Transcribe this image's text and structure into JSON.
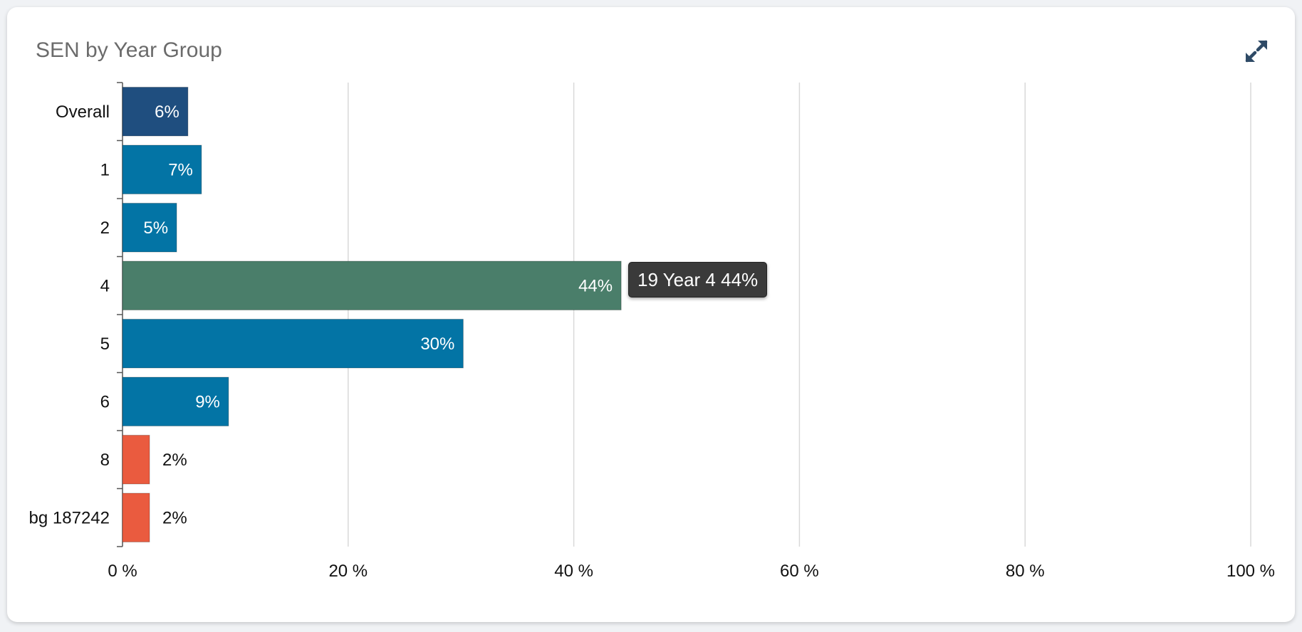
{
  "card": {
    "title": "SEN by Year Group",
    "expand_icon": "expand-arrows-icon"
  },
  "tooltip": {
    "text": "19 Year 4 44%"
  },
  "colors": {
    "overall": "#1f4e7f",
    "year": "#0374a5",
    "highlight": "#4a7e6a",
    "other": "#ea5b3f",
    "icon": "#2e4a66"
  },
  "chart_data": {
    "type": "bar",
    "orientation": "horizontal",
    "title": "SEN by Year Group",
    "xlabel": "",
    "ylabel": "",
    "xlim": [
      0,
      100
    ],
    "grid": true,
    "categories": [
      "Overall",
      "1",
      "2",
      "4",
      "5",
      "6",
      "8",
      "bg 187242"
    ],
    "values": [
      5.8,
      7.0,
      4.8,
      44.2,
      30.2,
      9.4,
      2.4,
      2.4
    ],
    "value_labels": [
      "6%",
      "7%",
      "5%",
      "44%",
      "30%",
      "9%",
      "2%",
      "2%"
    ],
    "bar_color_keys": [
      "overall",
      "year",
      "year",
      "highlight",
      "year",
      "year",
      "other",
      "other"
    ],
    "x_ticks": [
      0,
      20,
      40,
      60,
      80,
      100
    ],
    "x_tick_labels": [
      "0 %",
      "20 %",
      "40 %",
      "60 %",
      "80 %",
      "100 %"
    ]
  }
}
